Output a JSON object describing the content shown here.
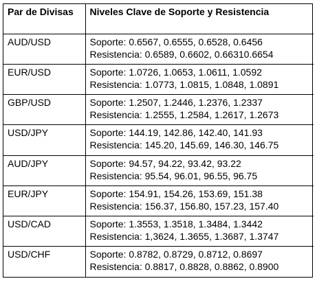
{
  "table": {
    "headers": {
      "pair": "Par de Divisas",
      "levels": "Niveles Clave de Soporte y Resistencia"
    },
    "rows": [
      {
        "pair": "AUD/USD",
        "support": "Soporte: 0.6567, 0.6555, 0.6528, 0.6456",
        "resistance": "Resistencia: 0.6589, 0.6602, 0.66310.6654"
      },
      {
        "pair": "EUR/USD",
        "support": "Soporte: 1.0726, 1.0653, 1.0611, 1.0592",
        "resistance": "Resistencia: 1.0773, 1.0815, 1.0848, 1.0891"
      },
      {
        "pair": "GBP/USD",
        "support": "Soporte: 1.2507, 1.2446, 1.2376, 1.2337",
        "resistance": "Resistencia: 1.2555, 1.2584, 1.2617, 1.2673"
      },
      {
        "pair": "USD/JPY",
        "support": "Soporte: 144.19, 142.86, 142.40, 141.93",
        "resistance": "Resistencia: 145.20, 145.69, 146.30, 146.75"
      },
      {
        "pair": "AUD/JPY",
        "support": "Soporte: 94.57, 94.22, 93.42, 93.22",
        "resistance": "Resistencia: 95.54, 96.01, 96.55, 96.75"
      },
      {
        "pair": "EUR/JPY",
        "support": "Soporte: 154.91, 154.26, 153.69, 151.38",
        "resistance": "Resistencia: 156.37, 156.80, 157.23, 157.40"
      },
      {
        "pair": "USD/CAD",
        "support": "Soporte: 1.3553, 1.3518, 1.3484, 1.3442",
        "resistance": "Resistencia: 1,3624, 1.3655, 1.3687, 1.3747"
      },
      {
        "pair": "USD/CHF",
        "support": "Soporte: 0.8782, 0.8729, 0.8712, 0.8697",
        "resistance": "Resistencia: 0.8817, 0.8828, 0.8862, 0.8900"
      }
    ]
  }
}
